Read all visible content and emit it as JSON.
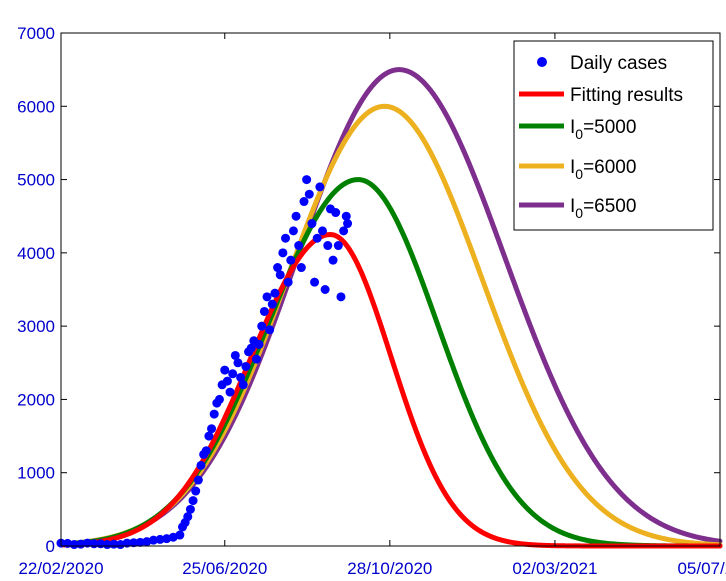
{
  "chart_data": {
    "type": "line",
    "title": "",
    "xlabel": "",
    "ylabel": "",
    "x_tick_labels": [
      "22/02/2020",
      "25/06/2020",
      "28/10/2020",
      "02/03/2021",
      "05/07/2021"
    ],
    "x_ticks_day": [
      0,
      124,
      249,
      374,
      499
    ],
    "y_tick_labels": [
      "0",
      "1000",
      "2000",
      "3000",
      "4000",
      "5000",
      "6000",
      "7000"
    ],
    "xlim_dates": [
      "22/02/2020",
      "05/07/2021"
    ],
    "ylim": [
      0,
      7000
    ],
    "grid": false,
    "legend_position": "top-right",
    "series": [
      {
        "name": "Daily cases",
        "kind": "scatter",
        "color": "#0000ff",
        "points": [
          [
            0,
            40
          ],
          [
            5,
            35
          ],
          [
            10,
            20
          ],
          [
            15,
            25
          ],
          [
            20,
            40
          ],
          [
            25,
            30
          ],
          [
            30,
            30
          ],
          [
            35,
            20
          ],
          [
            40,
            25
          ],
          [
            45,
            20
          ],
          [
            50,
            40
          ],
          [
            55,
            45
          ],
          [
            60,
            50
          ],
          [
            65,
            60
          ],
          [
            70,
            80
          ],
          [
            75,
            90
          ],
          [
            80,
            100
          ],
          [
            85,
            120
          ],
          [
            90,
            150
          ],
          [
            92,
            260
          ],
          [
            94,
            320
          ],
          [
            96,
            400
          ],
          [
            98,
            500
          ],
          [
            100,
            620
          ],
          [
            102,
            750
          ],
          [
            104,
            900
          ],
          [
            106,
            1100
          ],
          [
            108,
            1250
          ],
          [
            110,
            1300
          ],
          [
            112,
            1500
          ],
          [
            114,
            1600
          ],
          [
            116,
            1800
          ],
          [
            118,
            1950
          ],
          [
            120,
            2000
          ],
          [
            122,
            2200
          ],
          [
            124,
            2400
          ],
          [
            126,
            2250
          ],
          [
            128,
            2100
          ],
          [
            130,
            2350
          ],
          [
            132,
            2600
          ],
          [
            134,
            2500
          ],
          [
            136,
            2300
          ],
          [
            138,
            2200
          ],
          [
            140,
            2450
          ],
          [
            142,
            2650
          ],
          [
            144,
            2700
          ],
          [
            146,
            2800
          ],
          [
            148,
            2550
          ],
          [
            150,
            2750
          ],
          [
            152,
            3000
          ],
          [
            154,
            3200
          ],
          [
            156,
            3400
          ],
          [
            158,
            2950
          ],
          [
            160,
            3300
          ],
          [
            162,
            3450
          ],
          [
            164,
            3800
          ],
          [
            166,
            3700
          ],
          [
            168,
            4000
          ],
          [
            170,
            4200
          ],
          [
            172,
            3600
          ],
          [
            174,
            3900
          ],
          [
            176,
            4300
          ],
          [
            178,
            4500
          ],
          [
            180,
            4100
          ],
          [
            182,
            3800
          ],
          [
            184,
            4700
          ],
          [
            186,
            5000
          ],
          [
            188,
            4800
          ],
          [
            190,
            4400
          ],
          [
            192,
            3600
          ],
          [
            194,
            4200
          ],
          [
            196,
            4900
          ],
          [
            198,
            4300
          ],
          [
            200,
            3500
          ],
          [
            202,
            4100
          ],
          [
            204,
            4600
          ],
          [
            206,
            3900
          ],
          [
            208,
            4550
          ],
          [
            210,
            4100
          ],
          [
            212,
            3400
          ],
          [
            214,
            4300
          ],
          [
            216,
            4500
          ],
          [
            217,
            4400
          ]
        ]
      },
      {
        "name": "Fitting results",
        "kind": "line",
        "color": "#ff0000",
        "peak": 4250,
        "peak_day": 204,
        "left_width": 60,
        "right_width": 46
      },
      {
        "name": "I0=5000",
        "kind": "line",
        "color": "#008000",
        "peak": 5000,
        "peak_day": 225,
        "left_width": 68,
        "right_width": 60
      },
      {
        "name": "I0=6000",
        "kind": "line",
        "color": "#edb120",
        "peak": 6000,
        "peak_day": 245,
        "left_width": 74,
        "right_width": 74
      },
      {
        "name": "I0=6500",
        "kind": "line",
        "color": "#7e2f8e",
        "peak": 6500,
        "peak_day": 256,
        "left_width": 77,
        "right_width": 80
      }
    ]
  },
  "legend": {
    "entries": [
      {
        "label": "Daily cases"
      },
      {
        "label": "Fitting results"
      },
      {
        "label": "I",
        "sub": "0",
        "rest": "=5000"
      },
      {
        "label": "I",
        "sub": "0",
        "rest": "=6000"
      },
      {
        "label": "I",
        "sub": "0",
        "rest": "=6500"
      }
    ]
  }
}
